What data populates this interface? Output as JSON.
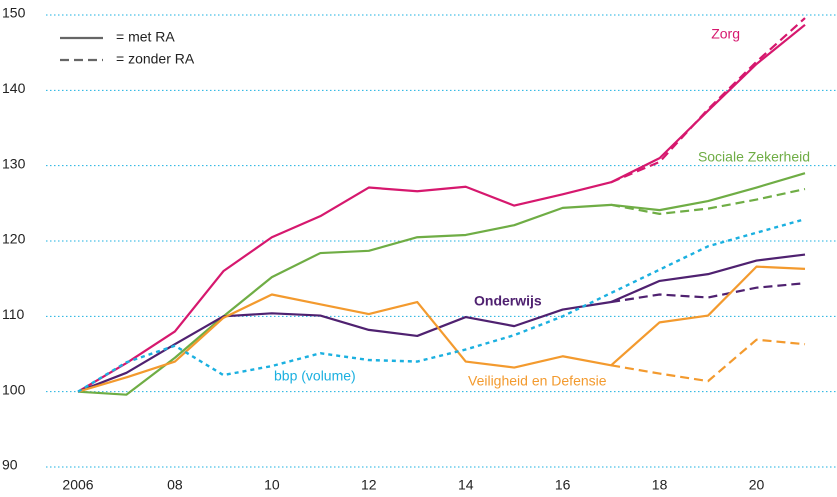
{
  "chart_data": {
    "type": "line",
    "x": [
      2006,
      2007,
      2008,
      2009,
      2010,
      2011,
      2012,
      2013,
      2014,
      2015,
      2016,
      2017,
      2018,
      2019,
      2020,
      2021
    ],
    "xlim": [
      2006,
      2021
    ],
    "xticks": [
      2006,
      {
        "value": 2008,
        "label": "08"
      },
      {
        "value": 2010,
        "label": "10"
      },
      {
        "value": 2012,
        "label": "12"
      },
      {
        "value": 2014,
        "label": "14"
      },
      {
        "value": 2016,
        "label": "16"
      },
      {
        "value": 2018,
        "label": "18"
      },
      {
        "value": 2020,
        "label": "20"
      }
    ],
    "ylim": [
      90,
      150
    ],
    "yticks": [
      90,
      100,
      110,
      120,
      130,
      140,
      150
    ],
    "grid": true,
    "legend": [
      {
        "label": "= met RA",
        "style": "solid"
      },
      {
        "label": "= zonder RA",
        "style": "dashed"
      }
    ],
    "series": [
      {
        "name": "Zorg",
        "color": "#d6186e",
        "values": [
          100,
          103.8,
          108,
          116,
          120.5,
          123.3,
          127.1,
          126.6,
          127.2,
          124.7,
          126.2,
          127.8,
          131,
          137.3,
          143.5,
          148.7
        ],
        "dashed_values": [
          null,
          null,
          null,
          null,
          null,
          null,
          null,
          null,
          null,
          null,
          null,
          127.8,
          130.5,
          137.5,
          143.8,
          149.6
        ]
      },
      {
        "name": "Sociale Zekerheid",
        "color": "#6fad45",
        "values": [
          100,
          99.6,
          104.5,
          110,
          115.2,
          118.4,
          118.7,
          120.5,
          120.8,
          122.1,
          124.4,
          124.8,
          124.1,
          125.3,
          127.1,
          129
        ],
        "dashed_values": [
          null,
          null,
          null,
          null,
          null,
          null,
          null,
          null,
          null,
          null,
          null,
          124.8,
          123.6,
          124.3,
          125.5,
          126.9
        ]
      },
      {
        "name": "Onderwijs",
        "color": "#4f2170",
        "values": [
          100,
          102.5,
          106.3,
          110,
          110.4,
          110.1,
          108.2,
          107.4,
          109.9,
          108.7,
          110.9,
          111.9,
          114.7,
          115.6,
          117.4,
          118.2
        ],
        "dashed_values": [
          null,
          null,
          null,
          null,
          null,
          null,
          null,
          null,
          null,
          null,
          null,
          111.9,
          112.9,
          112.5,
          113.8,
          114.4
        ]
      },
      {
        "name": "Veiligheid en Defensie",
        "color": "#f39a2e",
        "values": [
          100,
          101.9,
          104,
          109.8,
          112.9,
          111.6,
          110.3,
          111.9,
          104,
          103.2,
          104.7,
          103.5,
          109.2,
          110.1,
          116.6,
          116.3
        ],
        "dashed_values": [
          null,
          null,
          null,
          null,
          null,
          null,
          null,
          null,
          null,
          null,
          null,
          103.5,
          102.4,
          101.4,
          106.9,
          106.3
        ]
      },
      {
        "name": "bbp (volume)",
        "color": "#1bb0e0",
        "style": "dotted",
        "values": [
          100,
          103.9,
          106.1,
          102.2,
          103.4,
          105.1,
          104.2,
          104,
          105.6,
          107.5,
          110,
          113.1,
          116.2,
          119.3,
          121.1,
          122.9
        ]
      }
    ]
  }
}
